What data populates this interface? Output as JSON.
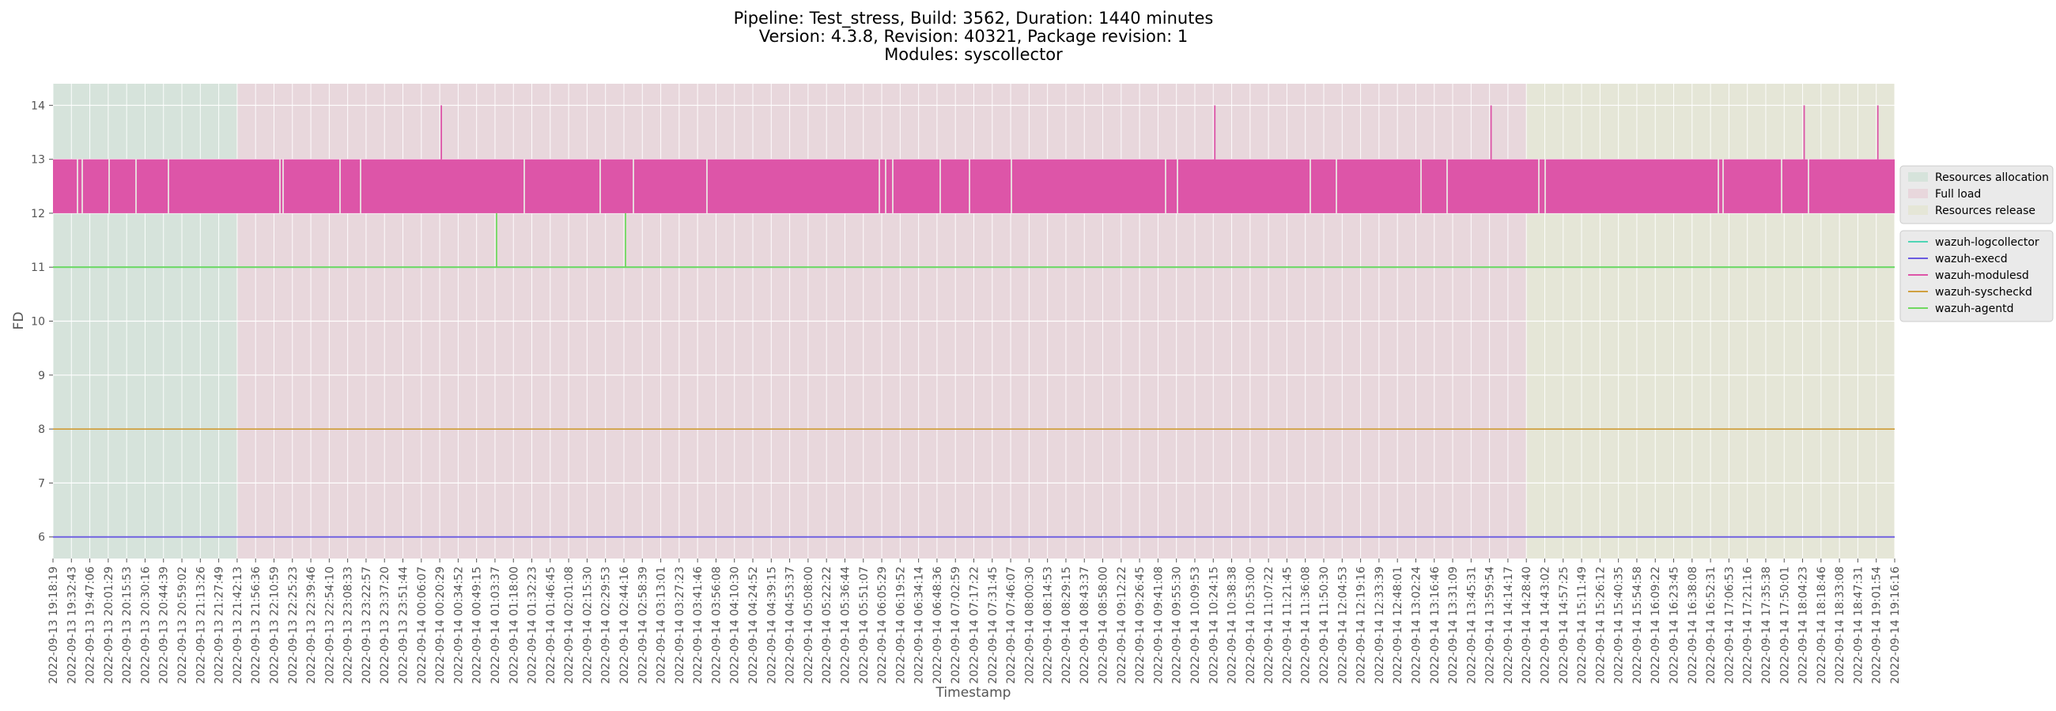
{
  "chart_data": {
    "type": "line",
    "title": [
      "Pipeline: Test_stress, Build: 3562, Duration: 1440 minutes",
      "Version: 4.3.8, Revision: 40321, Package revision: 1",
      "Modules: syscollector"
    ],
    "xlabel": "Timestamp",
    "ylabel": "FD",
    "ylim": [
      5.6,
      14.4
    ],
    "yticks": [
      6,
      7,
      8,
      9,
      10,
      11,
      12,
      13,
      14
    ],
    "grid": true,
    "x_tick_labels": [
      "2022-09-13 19:18:19",
      "2022-09-13 19:32:43",
      "2022-09-13 19:47:06",
      "2022-09-13 20:01:29",
      "2022-09-13 20:15:53",
      "2022-09-13 20:30:16",
      "2022-09-13 20:44:39",
      "2022-09-13 20:59:02",
      "2022-09-13 21:13:26",
      "2022-09-13 21:27:49",
      "2022-09-13 21:42:13",
      "2022-09-13 21:56:36",
      "2022-09-13 22:10:59",
      "2022-09-13 22:25:23",
      "2022-09-13 22:39:46",
      "2022-09-13 22:54:10",
      "2022-09-13 23:08:33",
      "2022-09-13 23:22:57",
      "2022-09-13 23:37:20",
      "2022-09-13 23:51:44",
      "2022-09-14 00:06:07",
      "2022-09-14 00:20:29",
      "2022-09-14 00:34:52",
      "2022-09-14 00:49:15",
      "2022-09-14 01:03:37",
      "2022-09-14 01:18:00",
      "2022-09-14 01:32:23",
      "2022-09-14 01:46:45",
      "2022-09-14 02:01:08",
      "2022-09-14 02:15:30",
      "2022-09-14 02:29:53",
      "2022-09-14 02:44:16",
      "2022-09-14 02:58:39",
      "2022-09-14 03:13:01",
      "2022-09-14 03:27:23",
      "2022-09-14 03:41:46",
      "2022-09-14 03:56:08",
      "2022-09-14 04:10:30",
      "2022-09-14 04:24:52",
      "2022-09-14 04:39:15",
      "2022-09-14 04:53:37",
      "2022-09-14 05:08:00",
      "2022-09-14 05:22:22",
      "2022-09-14 05:36:44",
      "2022-09-14 05:51:07",
      "2022-09-14 06:05:29",
      "2022-09-14 06:19:52",
      "2022-09-14 06:34:14",
      "2022-09-14 06:48:36",
      "2022-09-14 07:02:59",
      "2022-09-14 07:17:22",
      "2022-09-14 07:31:45",
      "2022-09-14 07:46:07",
      "2022-09-14 08:00:30",
      "2022-09-14 08:14:53",
      "2022-09-14 08:29:15",
      "2022-09-14 08:43:37",
      "2022-09-14 08:58:00",
      "2022-09-14 09:12:22",
      "2022-09-14 09:26:45",
      "2022-09-14 09:41:08",
      "2022-09-14 09:55:30",
      "2022-09-14 10:09:53",
      "2022-09-14 10:24:15",
      "2022-09-14 10:38:38",
      "2022-09-14 10:53:00",
      "2022-09-14 11:07:22",
      "2022-09-14 11:21:45",
      "2022-09-14 11:36:08",
      "2022-09-14 11:50:30",
      "2022-09-14 12:04:53",
      "2022-09-14 12:19:16",
      "2022-09-14 12:33:39",
      "2022-09-14 12:48:01",
      "2022-09-14 13:02:24",
      "2022-09-14 13:16:46",
      "2022-09-14 13:31:09",
      "2022-09-14 13:45:31",
      "2022-09-14 13:59:54",
      "2022-09-14 14:14:17",
      "2022-09-14 14:28:40",
      "2022-09-14 14:43:02",
      "2022-09-14 14:57:25",
      "2022-09-14 15:11:49",
      "2022-09-14 15:26:12",
      "2022-09-14 15:40:35",
      "2022-09-14 15:54:58",
      "2022-09-14 16:09:22",
      "2022-09-14 16:23:45",
      "2022-09-14 16:38:08",
      "2022-09-14 16:52:31",
      "2022-09-14 17:06:53",
      "2022-09-14 17:21:16",
      "2022-09-14 17:35:38",
      "2022-09-14 17:50:01",
      "2022-09-14 18:04:23",
      "2022-09-14 18:18:46",
      "2022-09-14 18:33:08",
      "2022-09-14 18:47:31",
      "2022-09-14 19:01:54",
      "2022-09-14 19:16:16"
    ],
    "phases": [
      {
        "name": "Resources allocation",
        "color": "#d6e3db",
        "start": "2022-09-13 19:18:19",
        "end": "2022-09-13 21:42:13"
      },
      {
        "name": "Full load",
        "color": "#e8d7dc",
        "start": "2022-09-13 21:42:13",
        "end": "2022-09-14 14:28:40"
      },
      {
        "name": "Resources release",
        "color": "#e5e6d7",
        "start": "2022-09-14 14:28:40",
        "end": "2022-09-14 19:16:16"
      }
    ],
    "series": [
      {
        "name": "wazuh-logcollector",
        "color": "#4fd5b5",
        "baseline": 11,
        "spikes": []
      },
      {
        "name": "wazuh-execd",
        "color": "#6a5ae0",
        "baseline": 6,
        "spikes": []
      },
      {
        "name": "wazuh-modulesd",
        "color": "#dd55a8",
        "baseline": 13,
        "oscillation_low": 12,
        "spikes": [
          {
            "x": "2022-09-14 00:20:29",
            "y": 14
          },
          {
            "x": "2022-09-14 10:24:15",
            "y": 14
          },
          {
            "x": "2022-09-14 13:59:54",
            "y": 14
          },
          {
            "x": "2022-09-14 18:04:23",
            "y": 14
          },
          {
            "x": "2022-09-14 19:01:54",
            "y": 14
          }
        ]
      },
      {
        "name": "wazuh-syscheckd",
        "color": "#d0a040",
        "baseline": 8,
        "spikes": []
      },
      {
        "name": "wazuh-agentd",
        "color": "#70d860",
        "baseline": 11,
        "spikes": [
          {
            "x": "2022-09-14 01:03:37",
            "y": 12
          },
          {
            "x": "2022-09-14 02:44:16",
            "y": 12
          }
        ]
      }
    ],
    "legends": [
      {
        "placement": "right",
        "entries": [
          "Resources allocation",
          "Full load",
          "Resources release"
        ]
      },
      {
        "placement": "right",
        "entries": [
          "wazuh-logcollector",
          "wazuh-execd",
          "wazuh-modulesd",
          "wazuh-syscheckd",
          "wazuh-agentd"
        ]
      }
    ]
  }
}
